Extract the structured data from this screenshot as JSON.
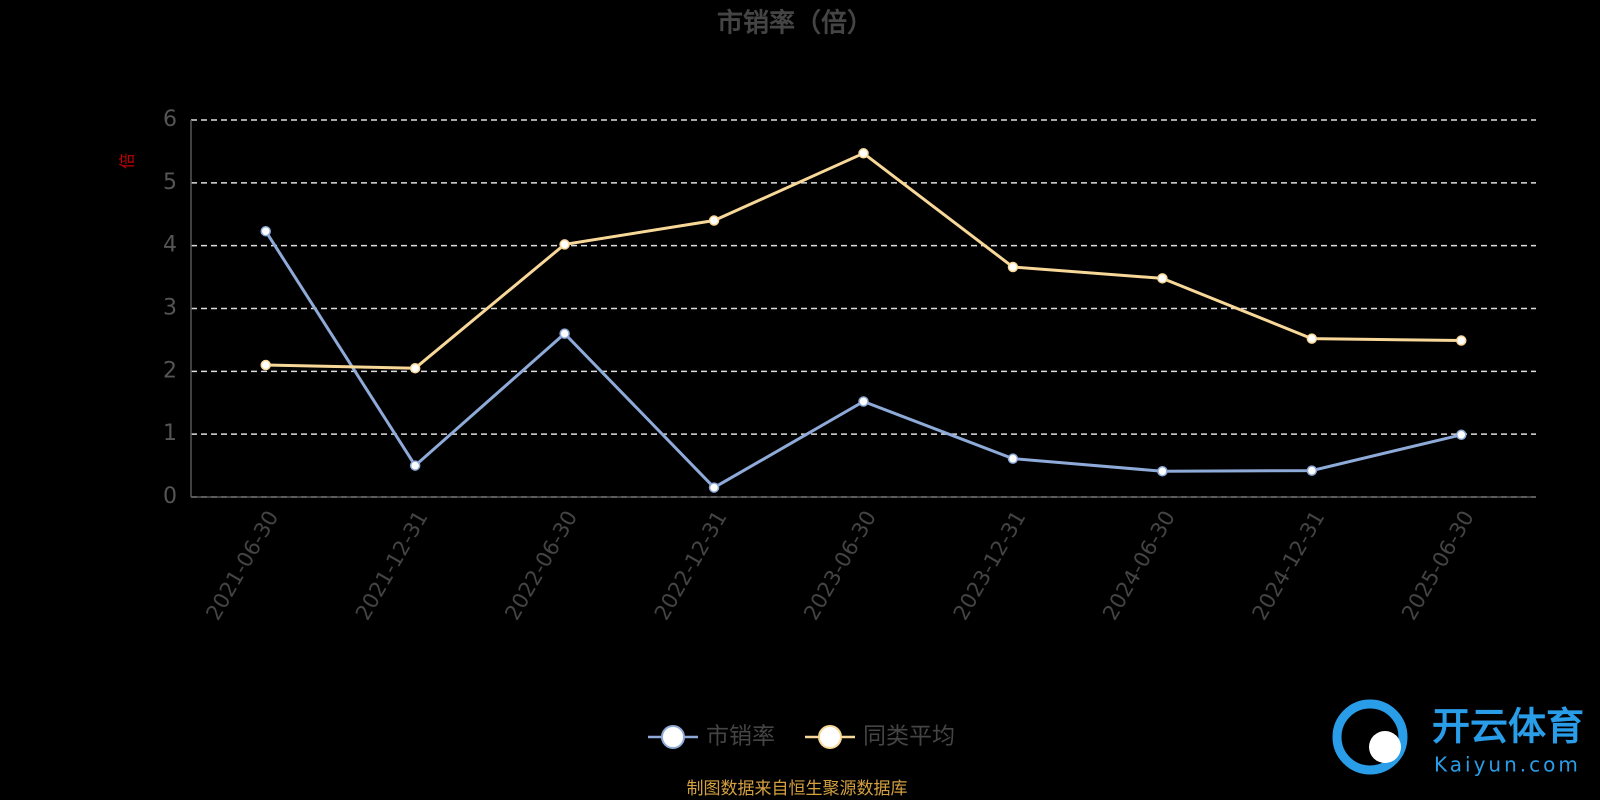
{
  "chart_data": {
    "type": "line",
    "title": "市销率（倍）",
    "y_label": "倍",
    "categories": [
      "2021-06-30",
      "2021-12-31",
      "2022-06-30",
      "2022-12-31",
      "2023-06-30",
      "2023-12-31",
      "2024-06-30",
      "2024-12-31",
      "2025-06-30"
    ],
    "series": [
      {
        "name": "市销率",
        "color": "#8eaad8",
        "values": [
          4.23,
          0.5,
          2.6,
          0.15,
          1.52,
          0.61,
          0.41,
          0.42,
          0.99
        ]
      },
      {
        "name": "同类平均",
        "color": "#f8d898",
        "values": [
          2.1,
          2.05,
          4.02,
          4.4,
          5.47,
          3.66,
          3.48,
          2.52,
          2.49
        ]
      }
    ],
    "ylim": [
      0,
      6
    ],
    "yticks": [
      0,
      1,
      2,
      3,
      4,
      5,
      6
    ],
    "grid": true,
    "source": "制图数据来自恒生聚源数据库",
    "watermark": {
      "brand": "开云体育",
      "url": "Kaiyun.com"
    }
  }
}
